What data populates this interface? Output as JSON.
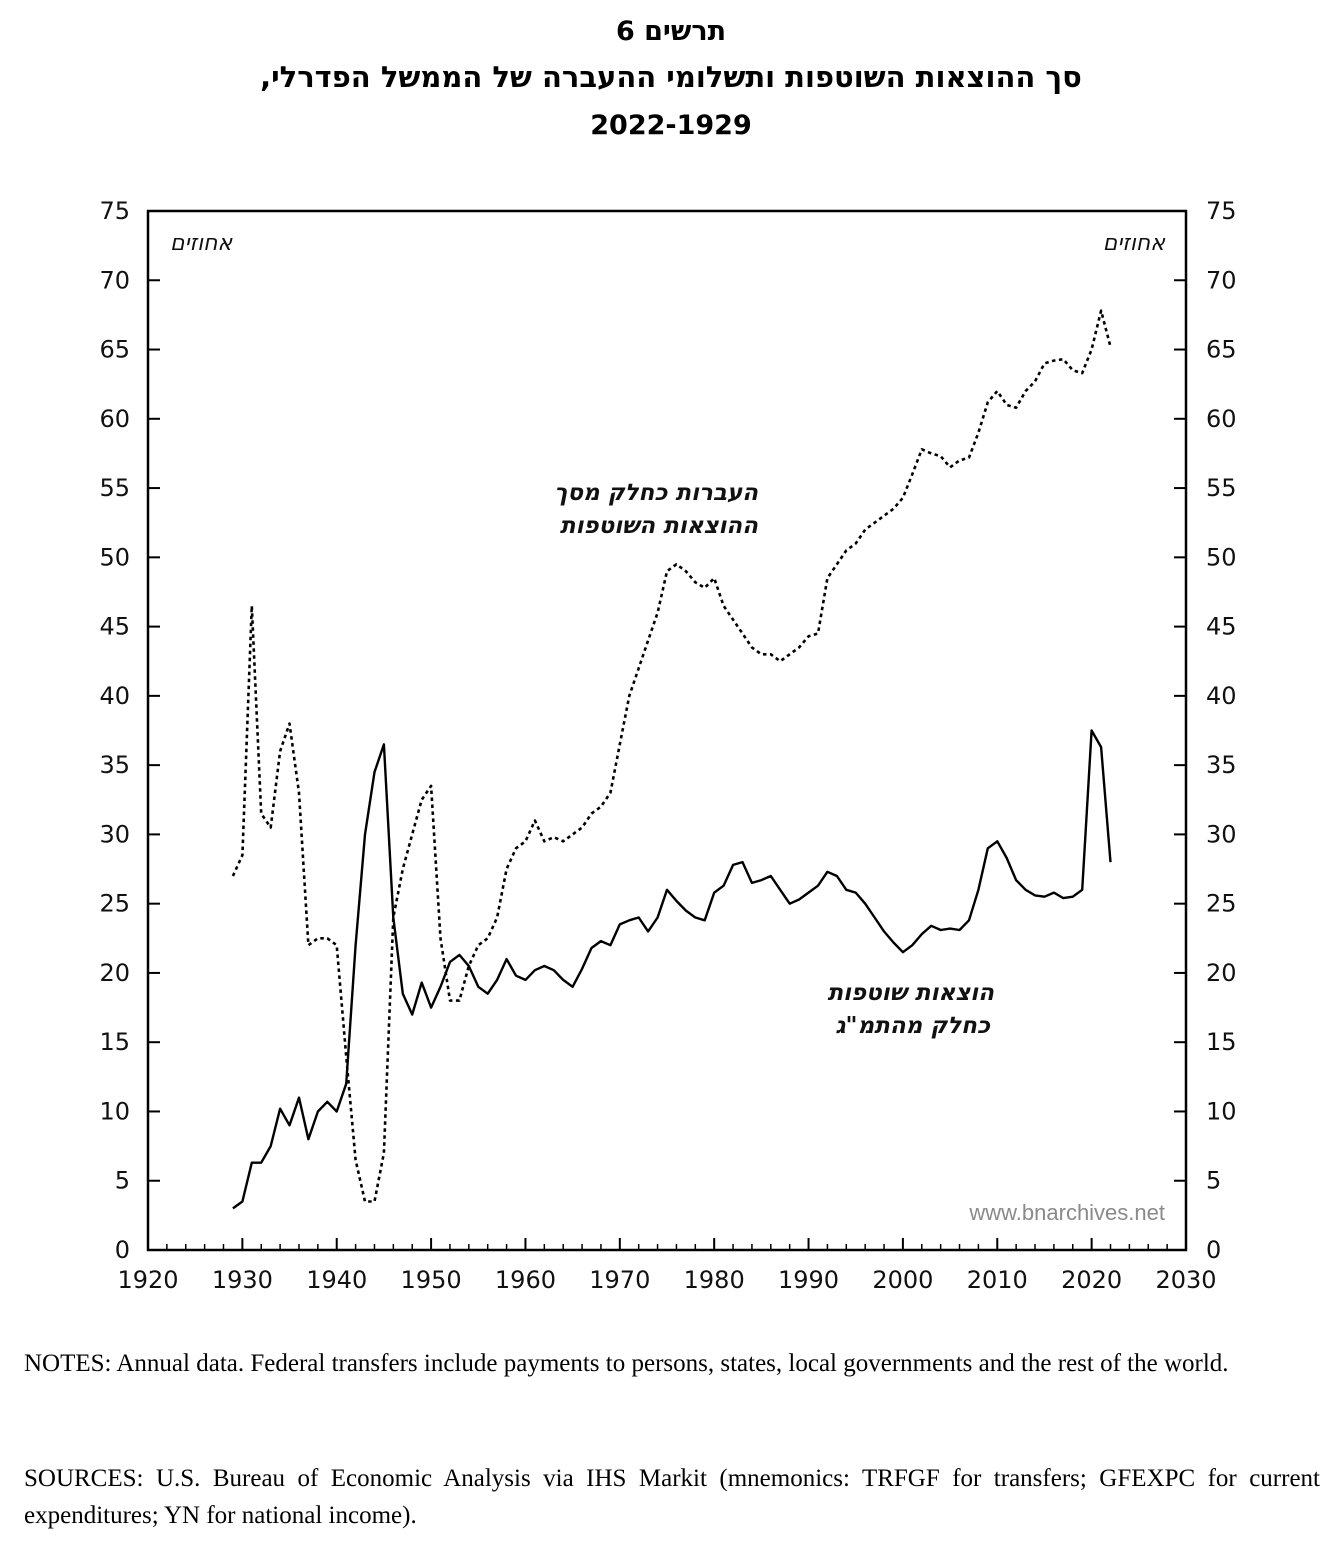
{
  "header": {
    "figure_label": "תרשים 6",
    "title_line": "סך ההוצאות השוטפות ותשלומי ההעברה של הממשל הפדרלי,",
    "years": "2022-1929"
  },
  "chart_data": {
    "type": "line",
    "title": "סך ההוצאות השוטפות ותשלומי ההעברה של הממשל הפדרלי, 2022-1929",
    "left_axis_unit": "אחוזים",
    "right_axis_unit": "אחוזים",
    "xlim": [
      1920,
      2030
    ],
    "ylim": [
      0,
      75
    ],
    "x_ticks": [
      1920,
      1930,
      1940,
      1950,
      1960,
      1970,
      1980,
      1990,
      2000,
      2010,
      2020,
      2030
    ],
    "y_ticks": [
      0,
      5,
      10,
      15,
      20,
      25,
      30,
      35,
      40,
      45,
      50,
      55,
      60,
      65,
      70,
      75
    ],
    "legend": "none (inline labels)",
    "series": [
      {
        "name": "transfers_share",
        "label_lines": [
          "העברות כחלק מסך",
          "ההוצאות השוטפות"
        ],
        "style": "dotted",
        "points": [
          [
            1929,
            27.0
          ],
          [
            1930,
            28.5
          ],
          [
            1931,
            46.5
          ],
          [
            1932,
            31.5
          ],
          [
            1933,
            30.5
          ],
          [
            1934,
            36.0
          ],
          [
            1935,
            38.0
          ],
          [
            1936,
            33.0
          ],
          [
            1937,
            22.0
          ],
          [
            1938,
            22.5
          ],
          [
            1939,
            22.5
          ],
          [
            1940,
            22.0
          ],
          [
            1941,
            14.0
          ],
          [
            1942,
            6.5
          ],
          [
            1943,
            3.5
          ],
          [
            1944,
            3.5
          ],
          [
            1945,
            7.0
          ],
          [
            1946,
            24.0
          ],
          [
            1947,
            27.5
          ],
          [
            1948,
            30.0
          ],
          [
            1949,
            32.5
          ],
          [
            1950,
            33.5
          ],
          [
            1951,
            22.5
          ],
          [
            1952,
            18.0
          ],
          [
            1953,
            18.0
          ],
          [
            1954,
            20.5
          ],
          [
            1955,
            22.0
          ],
          [
            1956,
            22.5
          ],
          [
            1957,
            24.0
          ],
          [
            1958,
            27.5
          ],
          [
            1959,
            29.0
          ],
          [
            1960,
            29.5
          ],
          [
            1961,
            31.0
          ],
          [
            1962,
            29.5
          ],
          [
            1963,
            29.8
          ],
          [
            1964,
            29.5
          ],
          [
            1965,
            30.0
          ],
          [
            1966,
            30.5
          ],
          [
            1967,
            31.5
          ],
          [
            1968,
            32.0
          ],
          [
            1969,
            33.0
          ],
          [
            1970,
            36.5
          ],
          [
            1971,
            40.0
          ],
          [
            1972,
            42.0
          ],
          [
            1973,
            44.0
          ],
          [
            1974,
            46.0
          ],
          [
            1975,
            49.0
          ],
          [
            1976,
            49.5
          ],
          [
            1977,
            49.0
          ],
          [
            1978,
            48.2
          ],
          [
            1979,
            47.8
          ],
          [
            1980,
            48.5
          ],
          [
            1981,
            46.5
          ],
          [
            1982,
            45.5
          ],
          [
            1983,
            44.5
          ],
          [
            1984,
            43.5
          ],
          [
            1985,
            43.0
          ],
          [
            1986,
            43.0
          ],
          [
            1987,
            42.5
          ],
          [
            1988,
            43.0
          ],
          [
            1989,
            43.5
          ],
          [
            1990,
            44.3
          ],
          [
            1991,
            44.5
          ],
          [
            1992,
            48.5
          ],
          [
            1993,
            49.5
          ],
          [
            1994,
            50.5
          ],
          [
            1995,
            51.0
          ],
          [
            1996,
            52.0
          ],
          [
            1997,
            52.5
          ],
          [
            1998,
            53.0
          ],
          [
            1999,
            53.5
          ],
          [
            2000,
            54.3
          ],
          [
            2001,
            56.0
          ],
          [
            2002,
            57.8
          ],
          [
            2003,
            57.5
          ],
          [
            2004,
            57.3
          ],
          [
            2005,
            56.5
          ],
          [
            2006,
            57.0
          ],
          [
            2007,
            57.2
          ],
          [
            2008,
            59.0
          ],
          [
            2009,
            61.2
          ],
          [
            2010,
            62.0
          ],
          [
            2011,
            61.0
          ],
          [
            2012,
            60.8
          ],
          [
            2013,
            62.0
          ],
          [
            2014,
            62.7
          ],
          [
            2015,
            64.0
          ],
          [
            2016,
            64.2
          ],
          [
            2017,
            64.3
          ],
          [
            2018,
            63.5
          ],
          [
            2019,
            63.3
          ],
          [
            2020,
            65.0
          ],
          [
            2021,
            67.8
          ],
          [
            2022,
            65.2
          ]
        ]
      },
      {
        "name": "expenditures_share_gnp",
        "label_lines": [
          "הוצאות שוטפות",
          "כחלק מהתמ\"ג"
        ],
        "style": "solid",
        "points": [
          [
            1929,
            3.0
          ],
          [
            1930,
            3.5
          ],
          [
            1931,
            6.3
          ],
          [
            1932,
            6.3
          ],
          [
            1933,
            7.5
          ],
          [
            1934,
            10.2
          ],
          [
            1935,
            9.0
          ],
          [
            1936,
            11.0
          ],
          [
            1937,
            8.0
          ],
          [
            1938,
            10.0
          ],
          [
            1939,
            10.7
          ],
          [
            1940,
            10.0
          ],
          [
            1941,
            12.0
          ],
          [
            1942,
            22.0
          ],
          [
            1943,
            30.0
          ],
          [
            1944,
            34.5
          ],
          [
            1945,
            36.5
          ],
          [
            1946,
            24.0
          ],
          [
            1947,
            18.5
          ],
          [
            1948,
            17.0
          ],
          [
            1949,
            19.3
          ],
          [
            1950,
            17.5
          ],
          [
            1951,
            19.0
          ],
          [
            1952,
            20.8
          ],
          [
            1953,
            21.3
          ],
          [
            1954,
            20.5
          ],
          [
            1955,
            19.0
          ],
          [
            1956,
            18.5
          ],
          [
            1957,
            19.5
          ],
          [
            1958,
            21.0
          ],
          [
            1959,
            19.8
          ],
          [
            1960,
            19.5
          ],
          [
            1961,
            20.2
          ],
          [
            1962,
            20.5
          ],
          [
            1963,
            20.2
          ],
          [
            1964,
            19.5
          ],
          [
            1965,
            19.0
          ],
          [
            1966,
            20.3
          ],
          [
            1967,
            21.8
          ],
          [
            1968,
            22.3
          ],
          [
            1969,
            22.0
          ],
          [
            1970,
            23.5
          ],
          [
            1971,
            23.8
          ],
          [
            1972,
            24.0
          ],
          [
            1973,
            23.0
          ],
          [
            1974,
            24.0
          ],
          [
            1975,
            26.0
          ],
          [
            1976,
            25.2
          ],
          [
            1977,
            24.5
          ],
          [
            1978,
            24.0
          ],
          [
            1979,
            23.8
          ],
          [
            1980,
            25.8
          ],
          [
            1981,
            26.3
          ],
          [
            1982,
            27.8
          ],
          [
            1983,
            28.0
          ],
          [
            1984,
            26.5
          ],
          [
            1985,
            26.7
          ],
          [
            1986,
            27.0
          ],
          [
            1987,
            26.0
          ],
          [
            1988,
            25.0
          ],
          [
            1989,
            25.3
          ],
          [
            1990,
            25.8
          ],
          [
            1991,
            26.3
          ],
          [
            1992,
            27.3
          ],
          [
            1993,
            27.0
          ],
          [
            1994,
            26.0
          ],
          [
            1995,
            25.8
          ],
          [
            1996,
            25.0
          ],
          [
            1997,
            24.0
          ],
          [
            1998,
            23.0
          ],
          [
            1999,
            22.2
          ],
          [
            2000,
            21.5
          ],
          [
            2001,
            22.0
          ],
          [
            2002,
            22.8
          ],
          [
            2003,
            23.4
          ],
          [
            2004,
            23.1
          ],
          [
            2005,
            23.2
          ],
          [
            2006,
            23.1
          ],
          [
            2007,
            23.8
          ],
          [
            2008,
            26.0
          ],
          [
            2009,
            29.0
          ],
          [
            2010,
            29.5
          ],
          [
            2011,
            28.3
          ],
          [
            2012,
            26.7
          ],
          [
            2013,
            26.0
          ],
          [
            2014,
            25.6
          ],
          [
            2015,
            25.5
          ],
          [
            2016,
            25.8
          ],
          [
            2017,
            25.4
          ],
          [
            2018,
            25.5
          ],
          [
            2019,
            26.0
          ],
          [
            2020,
            37.5
          ],
          [
            2021,
            36.3
          ],
          [
            2022,
            28.0
          ]
        ]
      }
    ]
  },
  "watermark": "www.bnarchives.net",
  "notes": "NOTES: Annual data. Federal transfers include payments to persons, states, local governments and the rest of the world.",
  "sources": "SOURCES: U.S. Bureau of Economic Analysis via IHS Markit (mnemonics: TRFGF for transfers; GFEXPC for current expenditures; YN for national income)."
}
